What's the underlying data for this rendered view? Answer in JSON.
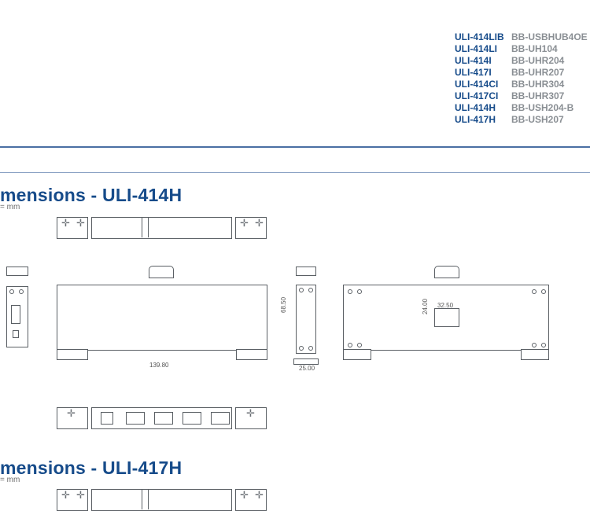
{
  "models": [
    {
      "left": "ULI-414LIB",
      "right": "BB-USBHUB4OE"
    },
    {
      "left": "ULI-414LI",
      "right": "BB-UH104"
    },
    {
      "left": "ULI-414I",
      "right": "BB-UHR204"
    },
    {
      "left": "ULI-417I",
      "right": "BB-UHR207"
    },
    {
      "left": "ULI-414CI",
      "right": "BB-UHR304"
    },
    {
      "left": "ULI-417CI",
      "right": "BB-UHR307"
    },
    {
      "left": "ULI-414H",
      "right": "BB-USH204-B"
    },
    {
      "left": "ULI-417H",
      "right": "BB-USH207"
    }
  ],
  "section1": {
    "title": "mensions - ULI-414H",
    "unit": "= mm"
  },
  "section2": {
    "title": "mensions - ULI-417H",
    "unit": "= mm"
  },
  "dimensions": {
    "width_main": "139.80",
    "height_side": "68.50",
    "base_side": "25.00",
    "inset_w": "32.50",
    "inset_h": "24.00"
  },
  "colors": {
    "brand_blue": "#164b8a",
    "muted_gray": "#8a8f94",
    "rule_blue": "#4a6fa3",
    "line": "#5a5f64"
  }
}
